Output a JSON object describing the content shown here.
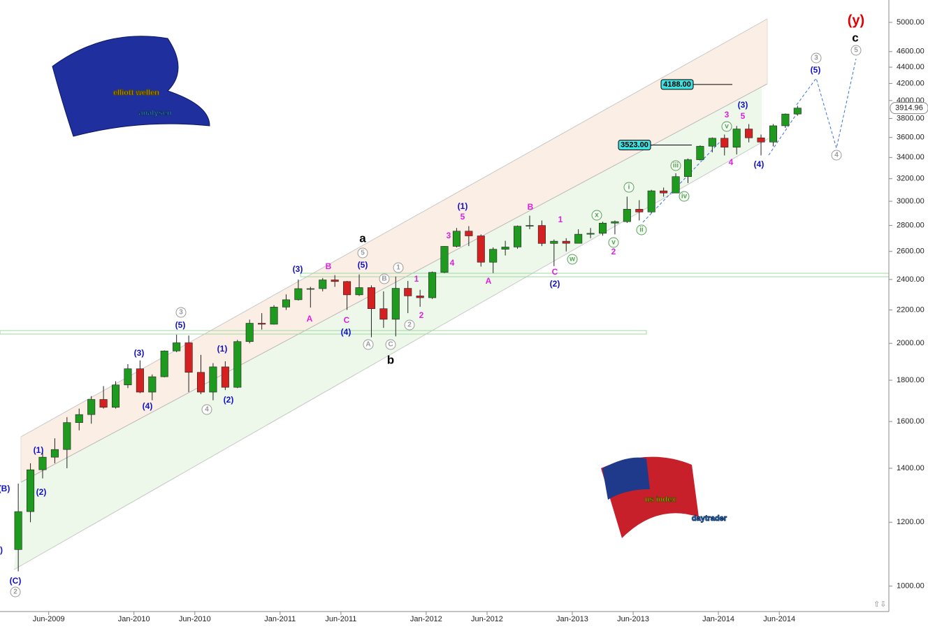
{
  "chart_data": {
    "type": "candlestick",
    "x": [
      "2009-03",
      "2009-04",
      "2009-05",
      "2009-06",
      "2009-07",
      "2009-08",
      "2009-09",
      "2009-10",
      "2009-11",
      "2009-12",
      "2010-01",
      "2010-02",
      "2010-03",
      "2010-04",
      "2010-05",
      "2010-06",
      "2010-07",
      "2010-08",
      "2010-09",
      "2010-10",
      "2010-11",
      "2010-12",
      "2011-01",
      "2011-02",
      "2011-03",
      "2011-04",
      "2011-05",
      "2011-06",
      "2011-07",
      "2011-08",
      "2011-09",
      "2011-10",
      "2011-11",
      "2011-12",
      "2012-01",
      "2012-02",
      "2012-03",
      "2012-04",
      "2012-05",
      "2012-06",
      "2012-07",
      "2012-08",
      "2012-09",
      "2012-10",
      "2012-11",
      "2012-12",
      "2013-01",
      "2013-02",
      "2013-03",
      "2013-04",
      "2013-05",
      "2013-06",
      "2013-07",
      "2013-08",
      "2013-09",
      "2013-10",
      "2013-11",
      "2013-12",
      "2014-01",
      "2014-02",
      "2014-03",
      "2014-04",
      "2014-05",
      "2014-06",
      "2014-07"
    ],
    "open": [
      1110,
      1237,
      1394,
      1445,
      1477,
      1595,
      1632,
      1704,
      1666,
      1776,
      1860,
      1740,
      1818,
      1957,
      2003,
      1841,
      1740,
      1870,
      1764,
      2010,
      2118,
      2112,
      2218,
      2265,
      2338,
      2338,
      2397,
      2386,
      2297,
      2345,
      2208,
      2142,
      2340,
      2290,
      2278,
      2449,
      2638,
      2755,
      2718,
      2521,
      2616,
      2633,
      2794,
      2800,
      2660,
      2677,
      2661,
      2731,
      2738,
      2819,
      2831,
      2933,
      2910,
      3091,
      3072,
      3219,
      3378,
      3511,
      3592,
      3501,
      3688,
      3596,
      3553,
      3722,
      3849
    ],
    "high": [
      1340,
      1420,
      1480,
      1525,
      1620,
      1660,
      1720,
      1770,
      1795,
      1885,
      1905,
      1830,
      1960,
      2050,
      2045,
      1935,
      1890,
      1900,
      2020,
      2140,
      2180,
      2230,
      2300,
      2400,
      2350,
      2410,
      2430,
      2390,
      2435,
      2360,
      2320,
      2420,
      2390,
      2330,
      2455,
      2640,
      2780,
      2795,
      2730,
      2630,
      2680,
      2800,
      2880,
      2840,
      2690,
      2700,
      2770,
      2780,
      2830,
      2840,
      3040,
      3010,
      3100,
      3120,
      3250,
      3390,
      3520,
      3600,
      3630,
      3720,
      3740,
      3630,
      3740,
      3855,
      3940
    ],
    "low": [
      1043,
      1200,
      1360,
      1420,
      1400,
      1560,
      1590,
      1660,
      1660,
      1760,
      1735,
      1700,
      1815,
      1950,
      1740,
      1730,
      1700,
      1750,
      1760,
      2000,
      2080,
      2110,
      2200,
      2260,
      2215,
      2320,
      2350,
      2200,
      2290,
      2035,
      2090,
      2040,
      2180,
      2220,
      2270,
      2445,
      2630,
      2640,
      2490,
      2444,
      2570,
      2620,
      2770,
      2640,
      2493,
      2600,
      2660,
      2700,
      2720,
      2730,
      2820,
      2840,
      2900,
      3040,
      3070,
      3160,
      3370,
      3450,
      3420,
      3430,
      3550,
      3420,
      3510,
      3700,
      3830
    ],
    "close": [
      1237,
      1394,
      1445,
      1477,
      1595,
      1632,
      1704,
      1666,
      1776,
      1860,
      1740,
      1818,
      1957,
      2003,
      1841,
      1740,
      1870,
      1764,
      2010,
      2118,
      2112,
      2218,
      2265,
      2338,
      2338,
      2397,
      2386,
      2297,
      2345,
      2208,
      2142,
      2340,
      2290,
      2278,
      2449,
      2638,
      2755,
      2718,
      2521,
      2616,
      2633,
      2794,
      2800,
      2660,
      2677,
      2661,
      2731,
      2738,
      2819,
      2831,
      2933,
      2910,
      3091,
      3072,
      3219,
      3378,
      3511,
      3592,
      3501,
      3688,
      3596,
      3553,
      3722,
      3849,
      3914.96
    ],
    "up_color": "#1e9a1e",
    "down_color": "#d42020",
    "log_scale": true,
    "xlim": [
      "2009-02",
      "2015-03"
    ],
    "xticks": [
      {
        "value": "2009-06",
        "label": "Jun-2009"
      },
      {
        "value": "2010-01",
        "label": "Jan-2010"
      },
      {
        "value": "2010-06",
        "label": "Jun-2010"
      },
      {
        "value": "2011-01",
        "label": "Jan-2011"
      },
      {
        "value": "2011-06",
        "label": "Jun-2011"
      },
      {
        "value": "2012-01",
        "label": "Jan-2012"
      },
      {
        "value": "2012-06",
        "label": "Jun-2012"
      },
      {
        "value": "2013-01",
        "label": "Jan-2013"
      },
      {
        "value": "2013-06",
        "label": "Jun-2013"
      },
      {
        "value": "2014-01",
        "label": "Jan-2014"
      },
      {
        "value": "2014-06",
        "label": "Jun-2014"
      }
    ],
    "ylim": [
      930,
      5330
    ],
    "yticks": [
      {
        "value": 1000,
        "label": "1000.00"
      },
      {
        "value": 1200,
        "label": "1200.00"
      },
      {
        "value": 1400,
        "label": "1400.00"
      },
      {
        "value": 1600,
        "label": "1600.00"
      },
      {
        "value": 1800,
        "label": "1800.00"
      },
      {
        "value": 2000,
        "label": "2000.00"
      },
      {
        "value": 2200,
        "label": "2200.00"
      },
      {
        "value": 2400,
        "label": "2400.00"
      },
      {
        "value": 2600,
        "label": "2600.00"
      },
      {
        "value": 2800,
        "label": "2800.00"
      },
      {
        "value": 3000,
        "label": "3000.00"
      },
      {
        "value": 3200,
        "label": "3200.00"
      },
      {
        "value": 3400,
        "label": "3400.00"
      },
      {
        "value": 3600,
        "label": "3600.00"
      },
      {
        "value": 3800,
        "label": "3800.00"
      },
      {
        "value": 4000,
        "label": "4000.00"
      },
      {
        "value": 4200,
        "label": "4200.00"
      },
      {
        "value": 4400,
        "label": "4400.00"
      },
      {
        "value": 4600,
        "label": "4600.00"
      },
      {
        "value": 5000,
        "label": "5000.00"
      }
    ],
    "levels": [
      {
        "value": 4188,
        "label": "4188.00"
      },
      {
        "value": 3523,
        "label": "3523.00"
      }
    ],
    "wave_labels": [
      "(y)",
      "c",
      "3",
      "(5)",
      "5",
      "4",
      "(3)",
      "3",
      "5",
      "v",
      "4",
      "(4)",
      "iii",
      "iv",
      "i",
      "ii",
      "v",
      "2",
      "x",
      "w",
      "1",
      "B",
      "C",
      "(2)",
      "(1)",
      "5",
      "3",
      "4",
      "A",
      "a",
      "5",
      "(5)",
      "B",
      "(3)",
      "1",
      "B",
      "1",
      "2",
      "2",
      "A",
      "C",
      "(4)",
      "A",
      "C",
      "b",
      "3",
      "(5)",
      "(3)",
      "(1)",
      "(4)",
      "(2)",
      "4",
      "(1)",
      "(2)",
      "(B)",
      "(C)",
      "2",
      ")"
    ]
  },
  "logos": {
    "top_left": [
      "elliott wellen",
      "analysen"
    ],
    "bottom_right": [
      "us index",
      "daytrader"
    ]
  }
}
